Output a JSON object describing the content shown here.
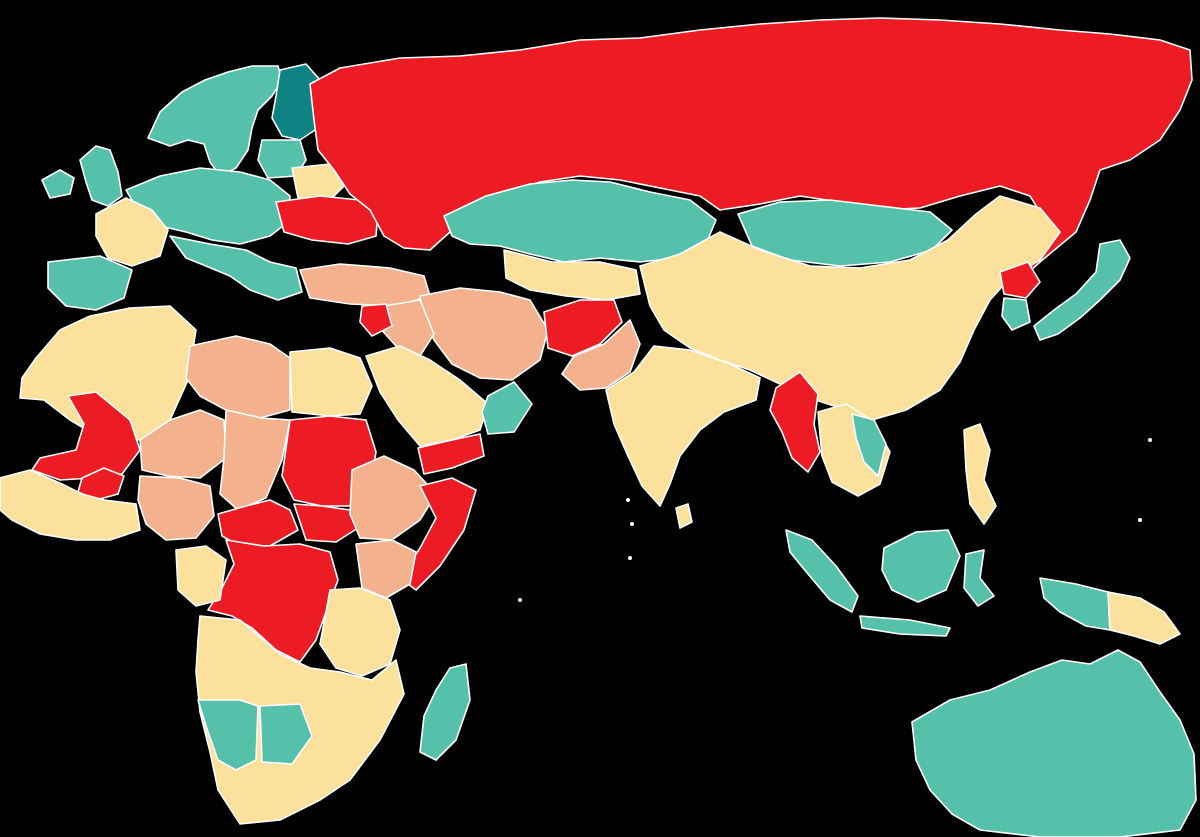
{
  "map": {
    "background": "#000000",
    "border_color": "#ffffff",
    "category_colors": {
      "red": "#ed1c24",
      "salmon": "#f4b18e",
      "pale_yellow": "#fbe19c",
      "teal": "#56c1aa",
      "dark_teal": "#0f8383"
    },
    "regions": [
      {
        "id": "russia",
        "category": "red"
      },
      {
        "id": "ukraine",
        "category": "red"
      },
      {
        "id": "afghanistan",
        "category": "red"
      },
      {
        "id": "myanmar",
        "category": "red"
      },
      {
        "id": "north-korea",
        "category": "red"
      },
      {
        "id": "mali",
        "category": "red"
      },
      {
        "id": "burkina-faso",
        "category": "red"
      },
      {
        "id": "sudan",
        "category": "red"
      },
      {
        "id": "south-sudan",
        "category": "red"
      },
      {
        "id": "central-african-republic",
        "category": "red"
      },
      {
        "id": "dr-congo",
        "category": "red"
      },
      {
        "id": "somalia",
        "category": "red"
      },
      {
        "id": "yemen",
        "category": "red"
      },
      {
        "id": "syria",
        "category": "red"
      },
      {
        "id": "kazakhstan",
        "category": "teal"
      },
      {
        "id": "mongolia",
        "category": "teal"
      },
      {
        "id": "japan",
        "category": "teal"
      },
      {
        "id": "south-korea",
        "category": "teal"
      },
      {
        "id": "australia",
        "category": "teal"
      },
      {
        "id": "indonesia-borneo",
        "category": "teal"
      },
      {
        "id": "indonesia-sumatra",
        "category": "teal"
      },
      {
        "id": "papua-new-guinea",
        "category": "pale_yellow"
      },
      {
        "id": "new-guinea-west",
        "category": "teal"
      },
      {
        "id": "madagascar",
        "category": "teal"
      },
      {
        "id": "namibia",
        "category": "teal"
      },
      {
        "id": "botswana",
        "category": "teal"
      },
      {
        "id": "china",
        "category": "pale_yellow"
      },
      {
        "id": "india",
        "category": "pale_yellow"
      },
      {
        "id": "pakistan",
        "category": "salmon"
      },
      {
        "id": "iran",
        "category": "salmon"
      },
      {
        "id": "iraq",
        "category": "salmon"
      },
      {
        "id": "turkey",
        "category": "salmon"
      },
      {
        "id": "saudi-arabia",
        "category": "pale_yellow"
      },
      {
        "id": "oman",
        "category": "teal"
      },
      {
        "id": "libya",
        "category": "salmon"
      },
      {
        "id": "egypt",
        "category": "pale_yellow"
      },
      {
        "id": "algeria",
        "category": "pale_yellow"
      },
      {
        "id": "niger",
        "category": "salmon"
      },
      {
        "id": "chad",
        "category": "salmon"
      },
      {
        "id": "nigeria",
        "category": "salmon"
      },
      {
        "id": "ethiopia",
        "category": "salmon"
      },
      {
        "id": "kenya",
        "category": "salmon"
      },
      {
        "id": "scandinavia",
        "category": "teal"
      },
      {
        "id": "finland",
        "category": "dark_teal"
      },
      {
        "id": "western-europe",
        "category": "teal"
      },
      {
        "id": "france",
        "category": "pale_yellow"
      },
      {
        "id": "iberia",
        "category": "teal"
      },
      {
        "id": "belarus",
        "category": "pale_yellow"
      },
      {
        "id": "southern-africa",
        "category": "pale_yellow"
      },
      {
        "id": "southeast-asia",
        "category": "pale_yellow"
      },
      {
        "id": "sri-lanka",
        "category": "pale_yellow"
      }
    ]
  }
}
